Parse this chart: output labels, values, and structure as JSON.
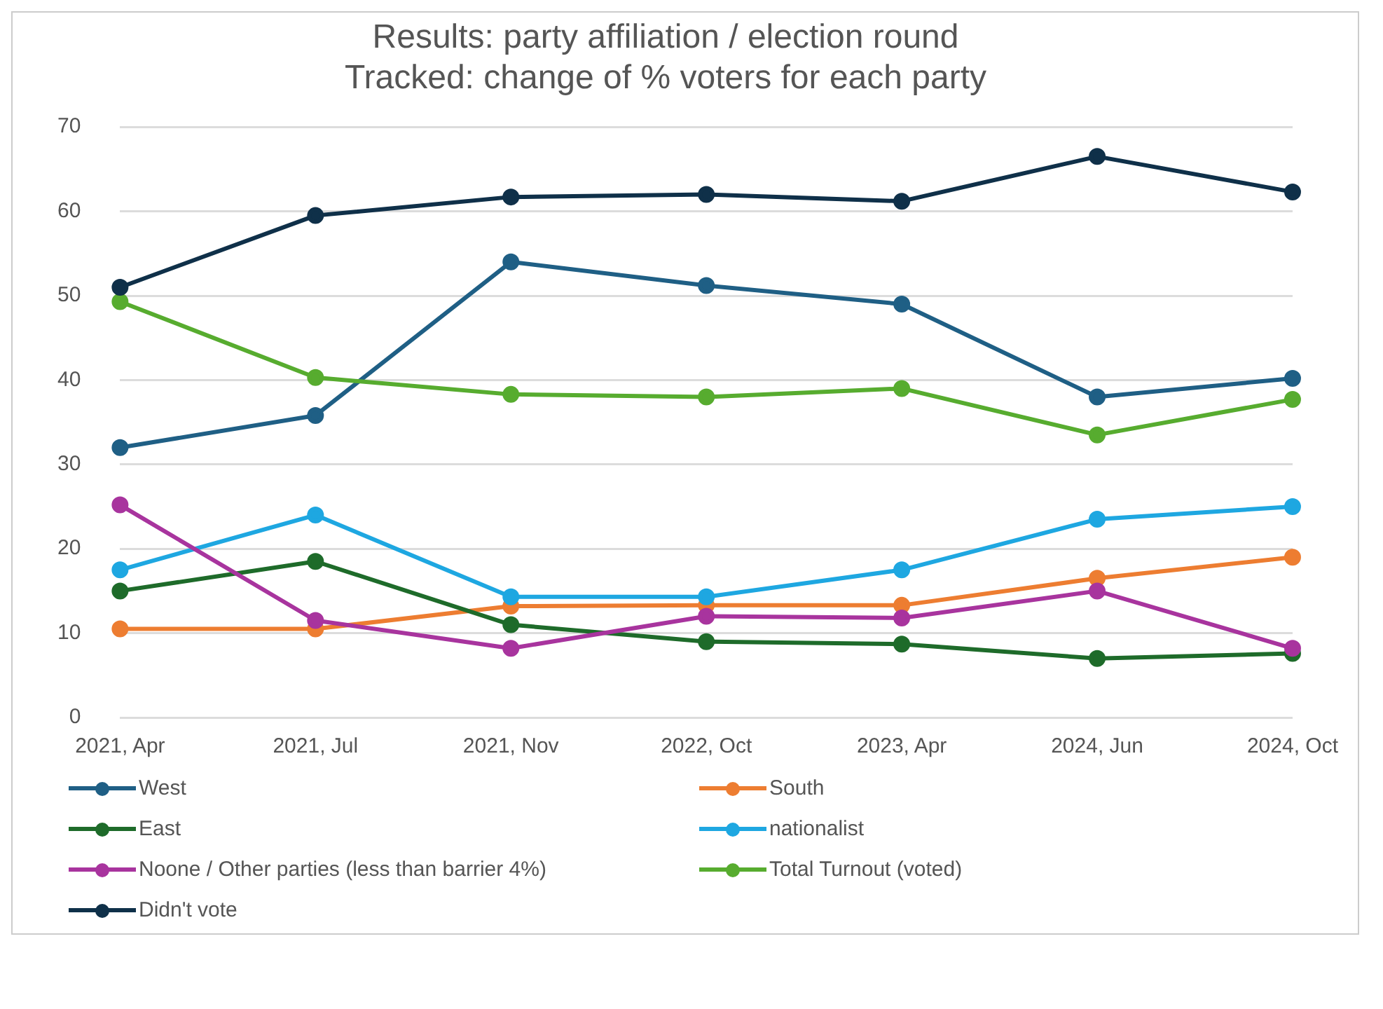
{
  "chart_data": {
    "type": "line",
    "title": "Results: party affiliation / election round\nTracked: change of % voters for each party",
    "categories": [
      "2021, Apr",
      "2021, Jul",
      "2021, Nov",
      "2022, Oct",
      "2023, Apr",
      "2024, Jun",
      "2024, Oct"
    ],
    "series": [
      {
        "name": "West",
        "color": "#1f5f85",
        "values": [
          32,
          35.8,
          54,
          51.2,
          49,
          38,
          40.2
        ]
      },
      {
        "name": "South",
        "color": "#ed7d31",
        "values": [
          10.5,
          10.5,
          13.2,
          13.3,
          13.3,
          16.5,
          19
        ]
      },
      {
        "name": "East",
        "color": "#1e6b2a",
        "values": [
          15,
          18.5,
          11,
          9,
          8.7,
          7,
          7.6
        ]
      },
      {
        "name": "nationalist",
        "color": "#1ea7e1",
        "values": [
          17.5,
          24,
          14.3,
          14.3,
          17.5,
          23.5,
          25
        ]
      },
      {
        "name": "Noone / Other parties (less than barrier 4%)",
        "color": "#a8349e",
        "values": [
          25.2,
          11.5,
          8.2,
          12,
          11.8,
          15,
          8.2
        ]
      },
      {
        "name": "Total Turnout (voted)",
        "color": "#57ac2f",
        "values": [
          49.3,
          40.3,
          38.3,
          38,
          39,
          33.5,
          37.7
        ]
      },
      {
        "name": "Didn't vote",
        "color": "#0f3049",
        "values": [
          51,
          59.5,
          61.7,
          62,
          61.2,
          66.5,
          62.3
        ]
      }
    ],
    "ylim": [
      0,
      70
    ],
    "yticks": [
      0,
      10,
      20,
      30,
      40,
      50,
      60,
      70
    ],
    "grid": "y",
    "legend": "bottom",
    "marker": "circle",
    "line_style": "solid"
  }
}
